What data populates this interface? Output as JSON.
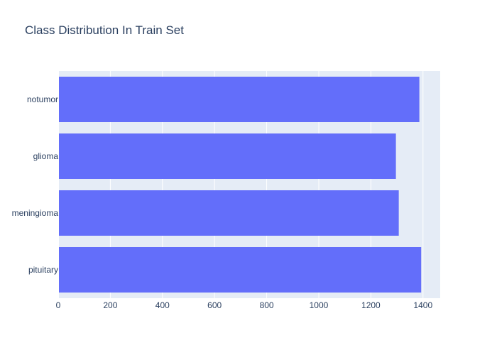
{
  "chart_data": {
    "type": "bar",
    "orientation": "horizontal",
    "title": "Class Distribution In Train Set",
    "xlabel": "",
    "ylabel": "",
    "categories": [
      "notumor",
      "glioma",
      "meningioma",
      "pituitary"
    ],
    "values": [
      1386,
      1296,
      1307,
      1393
    ],
    "xlim": [
      0,
      1466
    ],
    "xticks": [
      0,
      200,
      400,
      600,
      800,
      1000,
      1200,
      1400
    ],
    "grid": true,
    "legend": "none",
    "colors": {
      "bar": "#636efa",
      "plot_bg": "#e5ecf6",
      "grid": "#ffffff",
      "text": "#2a3f5f"
    }
  }
}
